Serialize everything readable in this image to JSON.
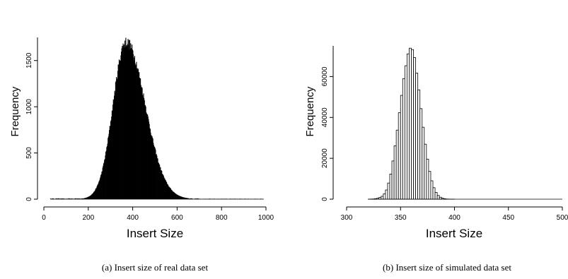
{
  "chart_data": [
    {
      "type": "bar",
      "subtype": "histogram",
      "xlabel": "Insert Size",
      "ylabel": "Frequency",
      "xlim": [
        0,
        1000
      ],
      "ylim": [
        0,
        1750
      ],
      "xticks": [
        "0",
        "200",
        "400",
        "600",
        "800",
        "1000"
      ],
      "yticks": [
        "0",
        "500",
        "1000",
        "1500"
      ],
      "bin_width": 2,
      "shape": {
        "kind": "right-skewed",
        "peak_x": 370,
        "peak_y": 1760,
        "support": [
          30,
          990
        ]
      },
      "caption": "(a) Insert size of real data set"
    },
    {
      "type": "bar",
      "subtype": "histogram",
      "xlabel": "Insert Size",
      "ylabel": "Frequency",
      "xlim": [
        300,
        500
      ],
      "ylim": [
        0,
        75000
      ],
      "xticks": [
        "300",
        "350",
        "400",
        "450",
        "500"
      ],
      "yticks": [
        "0",
        "20000",
        "40000",
        "60000"
      ],
      "bin_width": 2,
      "bins_start": 320,
      "values": [
        30,
        60,
        120,
        250,
        480,
        850,
        1400,
        2600,
        4500,
        7900,
        12300,
        18700,
        26100,
        33800,
        42300,
        50800,
        59000,
        65300,
        71100,
        73900,
        73200,
        69300,
        61700,
        53500,
        44300,
        35200,
        26900,
        19600,
        13600,
        9000,
        5600,
        3300,
        1800,
        950,
        470,
        210,
        90,
        35,
        10,
        5
      ],
      "caption": "(b) Insert size of simulated data set"
    }
  ]
}
